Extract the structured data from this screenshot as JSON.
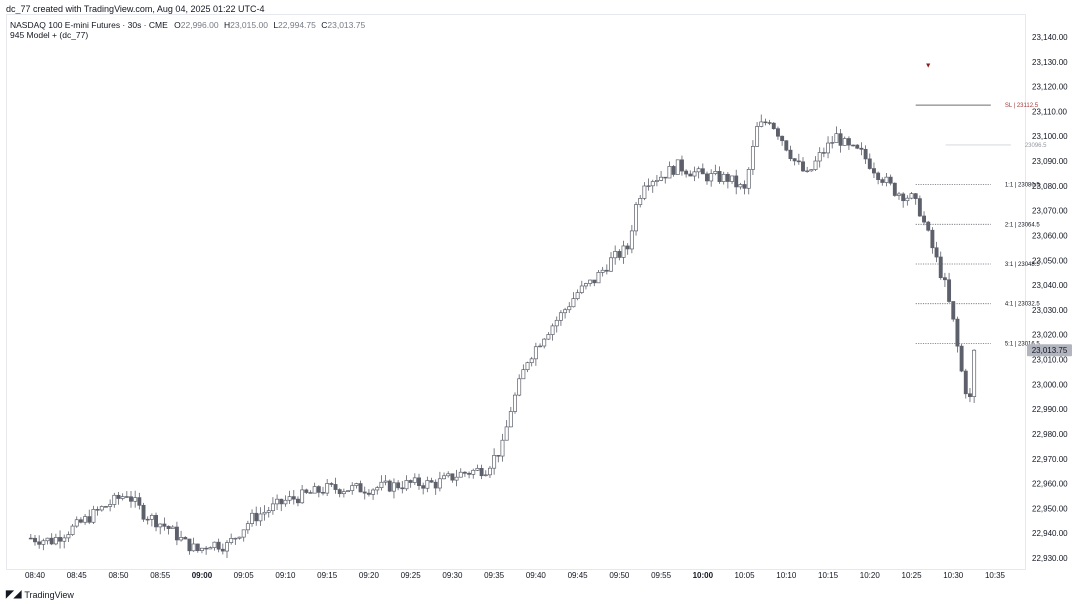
{
  "header": {
    "author_line": "dc_77 created with TradingView.com, Aug 04, 2025 01:22 UTC-4",
    "symbol": "NASDAQ 100 E-mini Futures · 30s · CME",
    "ohlc": [
      {
        "k": "O",
        "v": "22,996.00"
      },
      {
        "k": "H",
        "v": "23,015.00"
      },
      {
        "k": "L",
        "v": "22,994.75"
      },
      {
        "k": "C",
        "v": "23,013.75"
      }
    ],
    "indicator": "945 Model + (dc_77)"
  },
  "footer": {
    "brand": "TradingView",
    "logo": "tradingview-logo-icon"
  },
  "colors": {
    "candle": "#5d606b",
    "sl": "#a83a3a",
    "last_bg": "#b2b5be",
    "marker": "#8b1a1a"
  },
  "chart_data": {
    "type": "candlestick",
    "title": "NASDAQ 100 E-mini Futures · 30s · CME",
    "ylim": [
      22925,
      23145
    ],
    "y_ticks": [
      "22,930.00",
      "22,940.00",
      "22,950.00",
      "22,960.00",
      "22,970.00",
      "22,980.00",
      "22,990.00",
      "23,000.00",
      "23,010.00",
      "23,020.00",
      "23,030.00",
      "23,040.00",
      "23,050.00",
      "23,060.00",
      "23,070.00",
      "23,080.00",
      "23,090.00",
      "23,100.00",
      "23,110.00",
      "23,120.00",
      "23,130.00",
      "23,140.00"
    ],
    "x_ticks": [
      {
        "label": "08:40",
        "bold": false
      },
      {
        "label": "08:45",
        "bold": false
      },
      {
        "label": "08:50",
        "bold": false
      },
      {
        "label": "08:55",
        "bold": false
      },
      {
        "label": "09:00",
        "bold": true
      },
      {
        "label": "09:05",
        "bold": false
      },
      {
        "label": "09:10",
        "bold": false
      },
      {
        "label": "09:15",
        "bold": false
      },
      {
        "label": "09:20",
        "bold": false
      },
      {
        "label": "09:25",
        "bold": false
      },
      {
        "label": "09:30",
        "bold": false
      },
      {
        "label": "09:35",
        "bold": false
      },
      {
        "label": "09:40",
        "bold": false
      },
      {
        "label": "09:45",
        "bold": false
      },
      {
        "label": "09:50",
        "bold": false
      },
      {
        "label": "09:55",
        "bold": false
      },
      {
        "label": "10:00",
        "bold": true
      },
      {
        "label": "10:05",
        "bold": false
      },
      {
        "label": "10:10",
        "bold": false
      },
      {
        "label": "10:15",
        "bold": false
      },
      {
        "label": "10:20",
        "bold": false
      },
      {
        "label": "10:25",
        "bold": false
      },
      {
        "label": "10:30",
        "bold": false
      },
      {
        "label": "10:35",
        "bold": false
      }
    ],
    "last_price": {
      "value": 23013.75,
      "label": "23,013.75"
    },
    "levels": [
      {
        "label": "SL | 23112.5",
        "value": 23112.5,
        "style": "solid"
      },
      {
        "label": "23096.5",
        "value": 23096.5,
        "style": "entry"
      },
      {
        "label": "1:1 | 23080.5",
        "value": 23080.5,
        "style": "dotted"
      },
      {
        "label": "2:1 | 23064.5",
        "value": 23064.5,
        "style": "dotted"
      },
      {
        "label": "3:1 | 23048.5",
        "value": 23048.5,
        "style": "dotted"
      },
      {
        "label": "4:1 | 23032.5",
        "value": 23032.5,
        "style": "dotted"
      },
      {
        "label": "5:1 | 23016.5",
        "value": 23016.5,
        "style": "dotted"
      }
    ],
    "marker": {
      "time_min": 627,
      "value": 23129,
      "symbol": "▼"
    },
    "candles_interval_min": 0.5,
    "price_path": [
      {
        "t": 519.5,
        "p": 22938
      },
      {
        "t": 522,
        "p": 22937
      },
      {
        "t": 525,
        "p": 22943
      },
      {
        "t": 528,
        "p": 22950
      },
      {
        "t": 531,
        "p": 22956
      },
      {
        "t": 532,
        "p": 22952
      },
      {
        "t": 533,
        "p": 22948
      },
      {
        "t": 536,
        "p": 22942
      },
      {
        "t": 538,
        "p": 22936
      },
      {
        "t": 539.5,
        "p": 22933
      },
      {
        "t": 541,
        "p": 22936
      },
      {
        "t": 543,
        "p": 22935
      },
      {
        "t": 546,
        "p": 22946
      },
      {
        "t": 550,
        "p": 22953
      },
      {
        "t": 555,
        "p": 22958
      },
      {
        "t": 560,
        "p": 22958
      },
      {
        "t": 565,
        "p": 22960
      },
      {
        "t": 568,
        "p": 22960
      },
      {
        "t": 571,
        "p": 22964
      },
      {
        "t": 574,
        "p": 22966
      },
      {
        "t": 576,
        "p": 22975
      },
      {
        "t": 577,
        "p": 22990
      },
      {
        "t": 579,
        "p": 23010
      },
      {
        "t": 581,
        "p": 23020
      },
      {
        "t": 583,
        "p": 23028
      },
      {
        "t": 585,
        "p": 23037
      },
      {
        "t": 587,
        "p": 23042
      },
      {
        "t": 589,
        "p": 23050
      },
      {
        "t": 591,
        "p": 23055
      },
      {
        "t": 592,
        "p": 23072
      },
      {
        "t": 593,
        "p": 23082
      },
      {
        "t": 595,
        "p": 23084
      },
      {
        "t": 597,
        "p": 23088
      },
      {
        "t": 600,
        "p": 23084
      },
      {
        "t": 603,
        "p": 23083
      },
      {
        "t": 605,
        "p": 23078
      },
      {
        "t": 606.5,
        "p": 23103
      },
      {
        "t": 608,
        "p": 23107
      },
      {
        "t": 609.5,
        "p": 23099
      },
      {
        "t": 611,
        "p": 23090
      },
      {
        "t": 612.5,
        "p": 23084
      },
      {
        "t": 614,
        "p": 23092
      },
      {
        "t": 616,
        "p": 23100
      },
      {
        "t": 617.5,
        "p": 23095
      },
      {
        "t": 619,
        "p": 23093
      },
      {
        "t": 621,
        "p": 23085
      },
      {
        "t": 623,
        "p": 23078
      },
      {
        "t": 625,
        "p": 23075
      },
      {
        "t": 626,
        "p": 23070
      },
      {
        "t": 627,
        "p": 23060
      },
      {
        "t": 628,
        "p": 23050
      },
      {
        "t": 629,
        "p": 23040
      },
      {
        "t": 630,
        "p": 23025
      },
      {
        "t": 631,
        "p": 23005
      },
      {
        "t": 631.5,
        "p": 22998
      },
      {
        "t": 632,
        "p": 22994
      },
      {
        "t": 632.5,
        "p": 23013.75
      }
    ]
  }
}
